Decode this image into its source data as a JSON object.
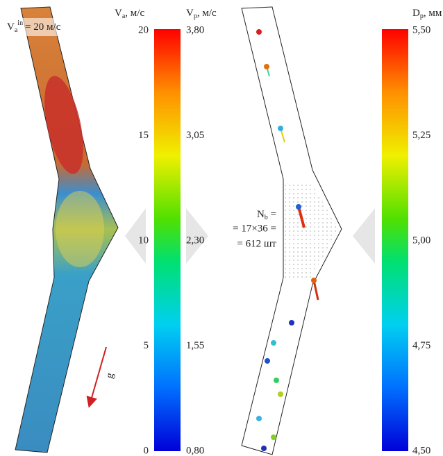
{
  "inlet_label": {
    "symbol": "V",
    "subscript": "a",
    "superscript": "in",
    "value": "= 20 м/с"
  },
  "gravity_label": "g",
  "left_scale": {
    "air": {
      "symbol": "V",
      "subscript": "a",
      "unit": ", м/с",
      "ticks": [
        "20",
        "15",
        "10",
        "5",
        "0"
      ]
    },
    "particle": {
      "symbol": "V",
      "subscript": "p",
      "unit": ", м/с",
      "ticks": [
        "3,80",
        "3,05",
        "2,30",
        "1,55",
        "0,80"
      ]
    }
  },
  "right_scale": {
    "symbol": "D",
    "subscript": "p",
    "unit": ", мм",
    "ticks": [
      "5,50",
      "5,25",
      "5,00",
      "4,75",
      "4,50"
    ]
  },
  "nozzle_label": {
    "symbol": "N",
    "subscript": "b",
    "line1_rest": " =",
    "line2": "= 17×36 =",
    "line3": "= 612 шт"
  }
}
